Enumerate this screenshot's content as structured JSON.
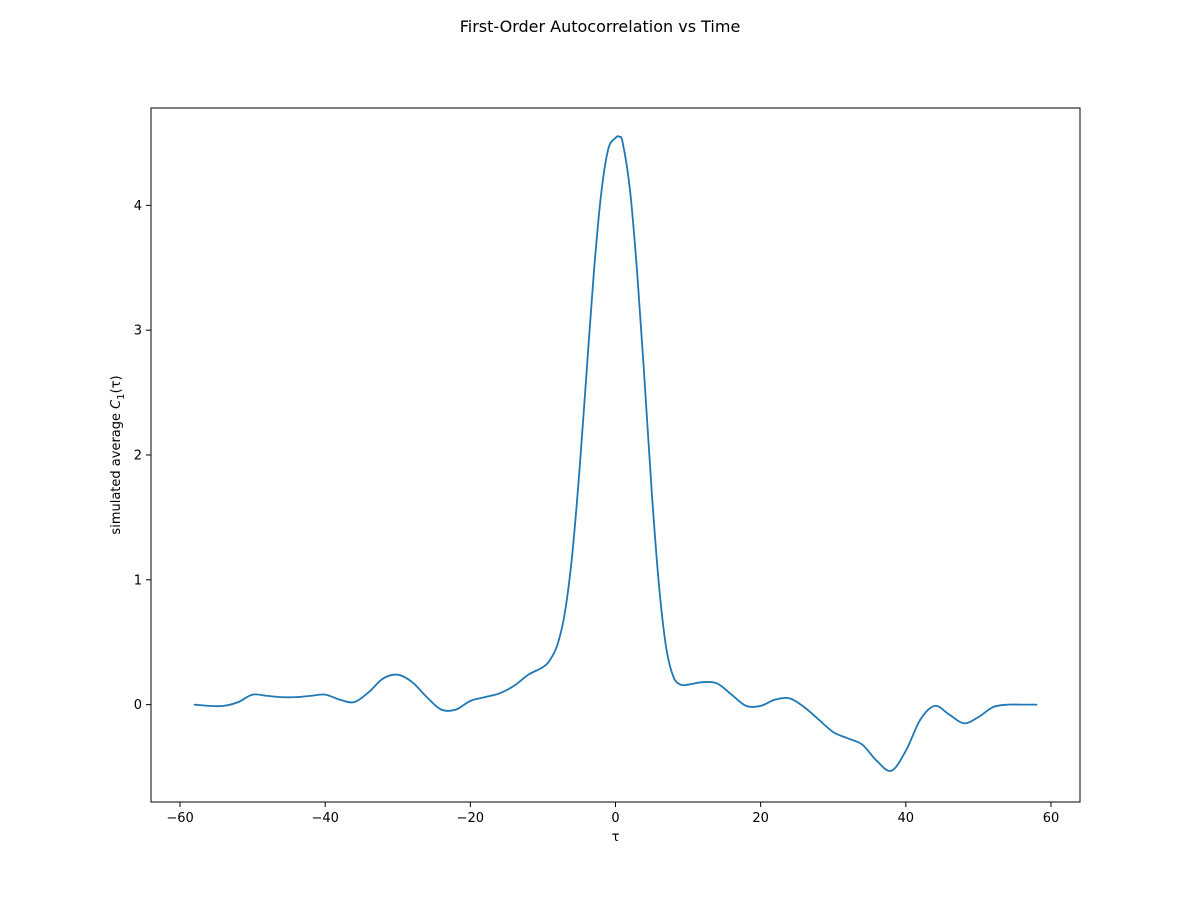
{
  "chart_data": {
    "type": "line",
    "title": "First-Order Autocorrelation vs Time",
    "xlabel": "τ",
    "ylabel": {
      "prefix": "simulated average ",
      "symbol": "C",
      "subscript": "1",
      "suffix": "(τ)"
    },
    "xlim": [
      -64,
      64
    ],
    "ylim": [
      -0.78,
      4.78
    ],
    "xticks": [
      -60,
      -40,
      -20,
      0,
      20,
      40,
      60
    ],
    "xtick_labels": [
      "−60",
      "−40",
      "−20",
      "0",
      "20",
      "40",
      "60"
    ],
    "yticks": [
      0,
      1,
      2,
      3,
      4
    ],
    "ytick_labels": [
      "0",
      "1",
      "2",
      "3",
      "4"
    ],
    "grid": false,
    "legend": "none",
    "series": [
      {
        "color": "#1f77b4",
        "x": [
          -58,
          -56,
          -54,
          -52,
          -50,
          -48,
          -46,
          -44,
          -42,
          -40,
          -38,
          -36,
          -34,
          -32,
          -30,
          -28,
          -26,
          -24,
          -22,
          -20,
          -18,
          -16,
          -14,
          -12,
          -10,
          -9,
          -8,
          -7,
          -6,
          -5,
          -4,
          -3,
          -2,
          -1,
          0,
          0.5,
          1,
          2,
          3,
          4,
          5,
          6,
          7,
          8,
          9,
          10,
          12,
          14,
          16,
          18,
          20,
          22,
          24,
          26,
          28,
          30,
          32,
          34,
          36,
          38,
          40,
          42,
          44,
          46,
          48,
          50,
          52,
          54,
          56,
          58
        ],
        "y": [
          0.0,
          -0.01,
          -0.01,
          0.02,
          0.08,
          0.07,
          0.06,
          0.06,
          0.07,
          0.08,
          0.04,
          0.02,
          0.1,
          0.21,
          0.24,
          0.18,
          0.06,
          -0.04,
          -0.04,
          0.03,
          0.06,
          0.09,
          0.15,
          0.24,
          0.3,
          0.36,
          0.48,
          0.73,
          1.18,
          1.85,
          2.65,
          3.45,
          4.08,
          4.45,
          4.54,
          4.55,
          4.5,
          4.12,
          3.45,
          2.6,
          1.7,
          0.95,
          0.45,
          0.22,
          0.16,
          0.16,
          0.18,
          0.17,
          0.08,
          -0.01,
          -0.01,
          0.04,
          0.05,
          -0.02,
          -0.12,
          -0.22,
          -0.27,
          -0.32,
          -0.45,
          -0.53,
          -0.37,
          -0.12,
          -0.01,
          -0.08,
          -0.15,
          -0.1,
          -0.02,
          0.0,
          0.0,
          0.0
        ]
      }
    ]
  }
}
